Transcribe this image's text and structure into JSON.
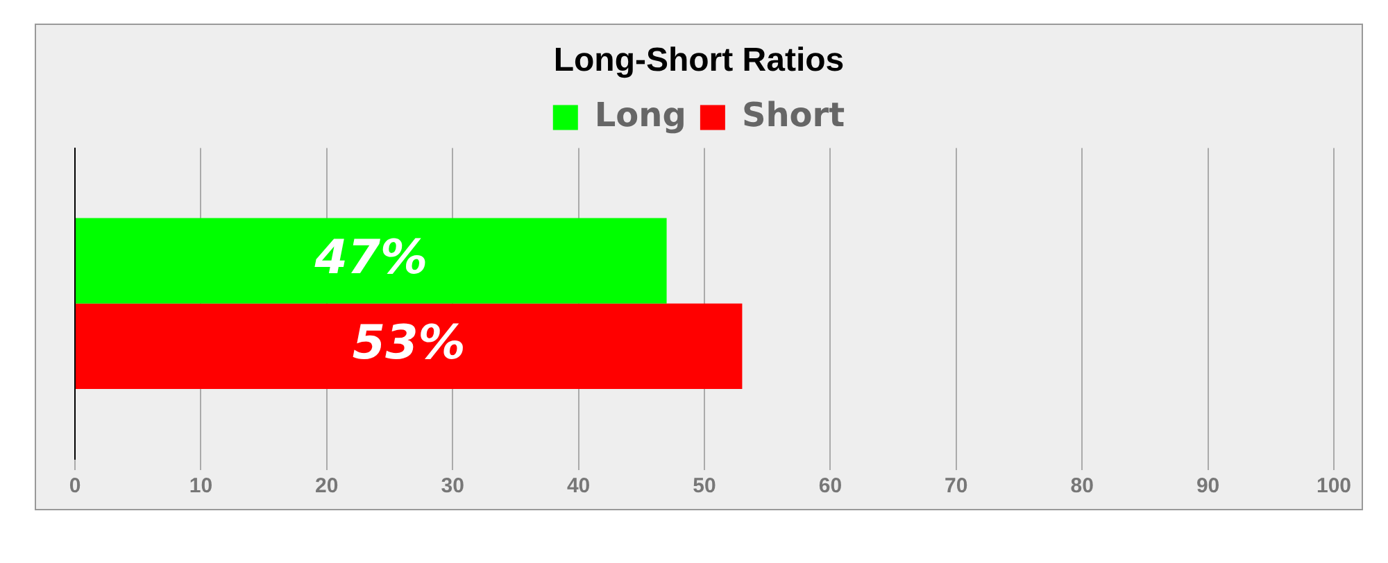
{
  "chart_data": {
    "type": "bar",
    "orientation": "horizontal",
    "title": "Long-Short Ratios",
    "categories": [
      null
    ],
    "series": [
      {
        "name": "Long",
        "color": "#00ff00",
        "values": [
          47
        ],
        "value_labels": [
          "47%"
        ]
      },
      {
        "name": "Short",
        "color": "#ff0000",
        "values": [
          53
        ],
        "value_labels": [
          "53%"
        ]
      }
    ],
    "xlim": [
      0,
      100
    ],
    "xticks": [
      0,
      10,
      20,
      30,
      40,
      50,
      60,
      70,
      80,
      90,
      100
    ],
    "grid": "x",
    "legend": "top"
  }
}
